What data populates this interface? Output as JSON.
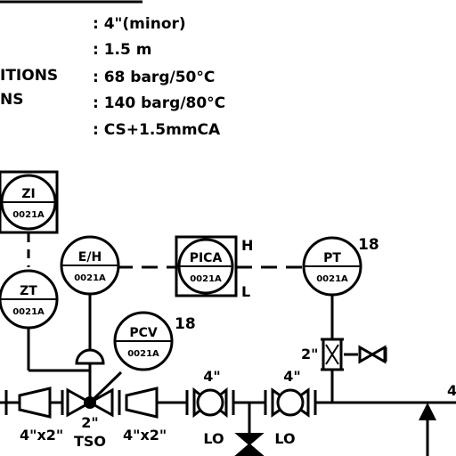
{
  "specs": [
    {
      "label": "",
      "value": ": 4\"(minor)"
    },
    {
      "label": "",
      "value": ": 1.5  m"
    },
    {
      "label": "ITIONS",
      "value": ": 68  barg/50°C"
    },
    {
      "label": "NS",
      "value": ": 140  barg/80°C"
    },
    {
      "label": "",
      "value": ": CS+1.5mmCA"
    }
  ],
  "instruments": {
    "zi": {
      "name": "ZI",
      "number": "0021A"
    },
    "zt": {
      "name": "ZT",
      "number": "0021A"
    },
    "eh": {
      "name": "E/H",
      "number": "0021A"
    },
    "pica": {
      "name": "PICA",
      "number": "0021A",
      "high": "H",
      "low": "L"
    },
    "pt": {
      "name": "PT",
      "number": "0021A",
      "note": "18"
    },
    "pcv": {
      "name": "PCV",
      "number": "0021A",
      "note": "18"
    }
  },
  "pipe_labels": {
    "reducer_left": "4\"x2\"",
    "valve_size": "2\"",
    "valve_status": "TSO",
    "reducer_right": "4\"x2\"",
    "lo_valve_1_size": "4\"",
    "lo_valve_1_status": "LO",
    "lo_valve_2_size": "4\"",
    "lo_valve_2_status": "LO",
    "tap_size": "2\"",
    "edge_mark": "4"
  },
  "colors": {
    "line": "#000000",
    "background": "#ffffff"
  }
}
